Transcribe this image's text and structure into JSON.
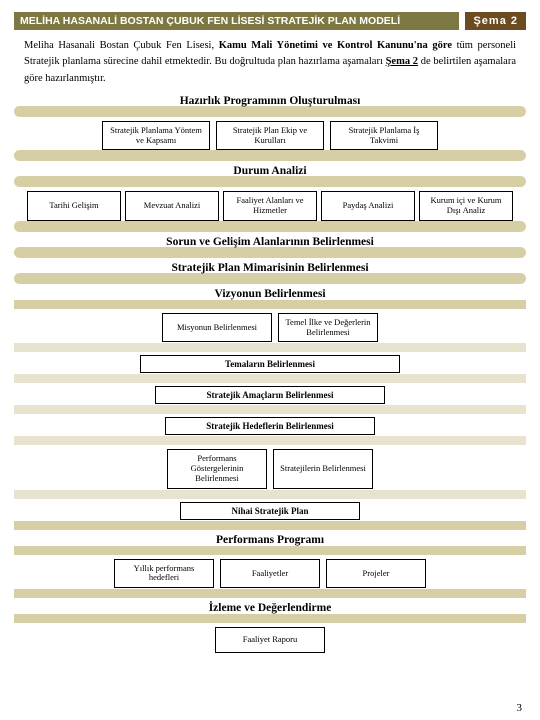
{
  "colors": {
    "olive": "#7d7841",
    "brown": "#6b4b1f",
    "band": "#d6cfa6",
    "bandLight": "#e7e3ce"
  },
  "header": {
    "title": "MELİHA HASANALİ BOSTAN ÇUBUK FEN LİSESİ STRATEJİK PLAN MODELİ",
    "badge": "Şema 2"
  },
  "intro": {
    "line1_before": "Meliha Hasanali Bostan Çubuk Fen Lisesi, ",
    "line1_bold": "Kamu Mali Yönetimi ve Kontrol Kanunu'na göre",
    "line2": "tüm personeli Stratejik planlama sürecine dahil etmektedir. Bu doğrultuda plan hazırlama aşamaları ",
    "line3_u": "Şema 2",
    "line3_after": " de belirtilen aşamalara göre hazırlanmıştır."
  },
  "s1": {
    "title": "Hazırlık Programının Oluşturulması",
    "b1": "Stratejik Planlama Yöntem ve Kapsamı",
    "b2": "Stratejik Plan Ekip ve Kurulları",
    "b3": "Stratejik Planlama İş Takvimi"
  },
  "s2": {
    "title": "Durum Analizi",
    "b1": "Tarihi Gelişim",
    "b2": "Mevzuat Analizi",
    "b3": "Faaliyet Alanları ve Hizmetler",
    "b4": "Paydaş Analizi",
    "b5": "Kurum içi ve Kurum Dışı Analiz"
  },
  "s3": {
    "title": "Sorun ve Gelişim Alanlarının Belirlenmesi"
  },
  "s4": {
    "title": "Stratejik Plan Mimarisinin Belirlenmesi"
  },
  "s5": {
    "title": "Vizyonun Belirlenmesi",
    "b1": "Misyonun Belirlenmesi",
    "b2": "Temel İlke ve Değerlerin Belirlenmesi",
    "w1": "Temaların Belirlenmesi",
    "w2": "Stratejik Amaçların Belirlenmesi",
    "w3": "Stratejik Hedeflerin Belirlenmesi",
    "b3": "Performans Göstergelerinin Belirlenmesi",
    "b4": "Stratejilerin Belirlenmesi",
    "w4": "Nihai Stratejik Plan"
  },
  "s6": {
    "title": "Performans Programı",
    "b1": "Yıllık performans hedefleri",
    "b2": "Faaliyetler",
    "b3": "Projeler"
  },
  "s7": {
    "title": "İzleme ve Değerlendirme",
    "b1": "Faaliyet Raporu"
  },
  "pageNum": "3",
  "widths": {
    "box3": "108px",
    "box5": "94px",
    "box2a": "110px",
    "box2b": "100px",
    "wideA": "260px",
    "wideB": "230px",
    "wideC": "210px",
    "wideD": "180px",
    "perf": "100px",
    "fr": "110px"
  }
}
